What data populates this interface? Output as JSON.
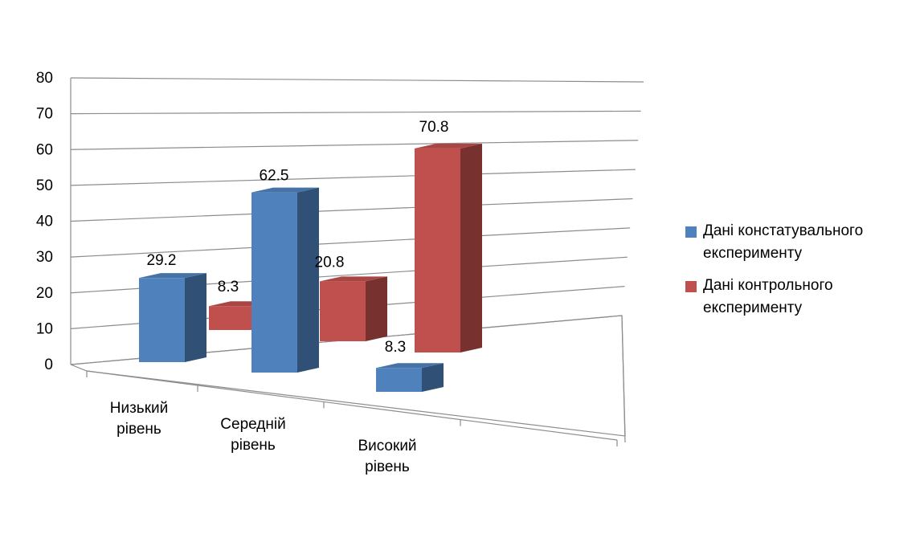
{
  "chart_data": {
    "type": "bar",
    "categories": [
      [
        "Низький",
        "рівень"
      ],
      [
        "Середній",
        "рівень"
      ],
      [
        "Високий",
        "рівень"
      ]
    ],
    "series": [
      {
        "name": "Дані констатувального експерименту",
        "values": [
          29.2,
          62.5,
          8.3
        ],
        "color": "#4f81bd"
      },
      {
        "name": "Дані контрольного експерименту",
        "values": [
          8.3,
          20.8,
          70.8
        ],
        "color": "#c0504d"
      }
    ],
    "ylim": [
      0,
      80
    ],
    "yticks": [
      "0",
      "10",
      "20",
      "30",
      "40",
      "50",
      "60",
      "70",
      "80"
    ],
    "grid": true,
    "legend_position": "right",
    "style": "3d-clustered-column"
  },
  "legend": {
    "items": [
      {
        "lines": [
          "Дані констатувального",
          "експерименту"
        ],
        "color": "#4f81bd"
      },
      {
        "lines": [
          "Дані контрольного",
          "експерименту"
        ],
        "color": "#c0504d"
      }
    ]
  }
}
